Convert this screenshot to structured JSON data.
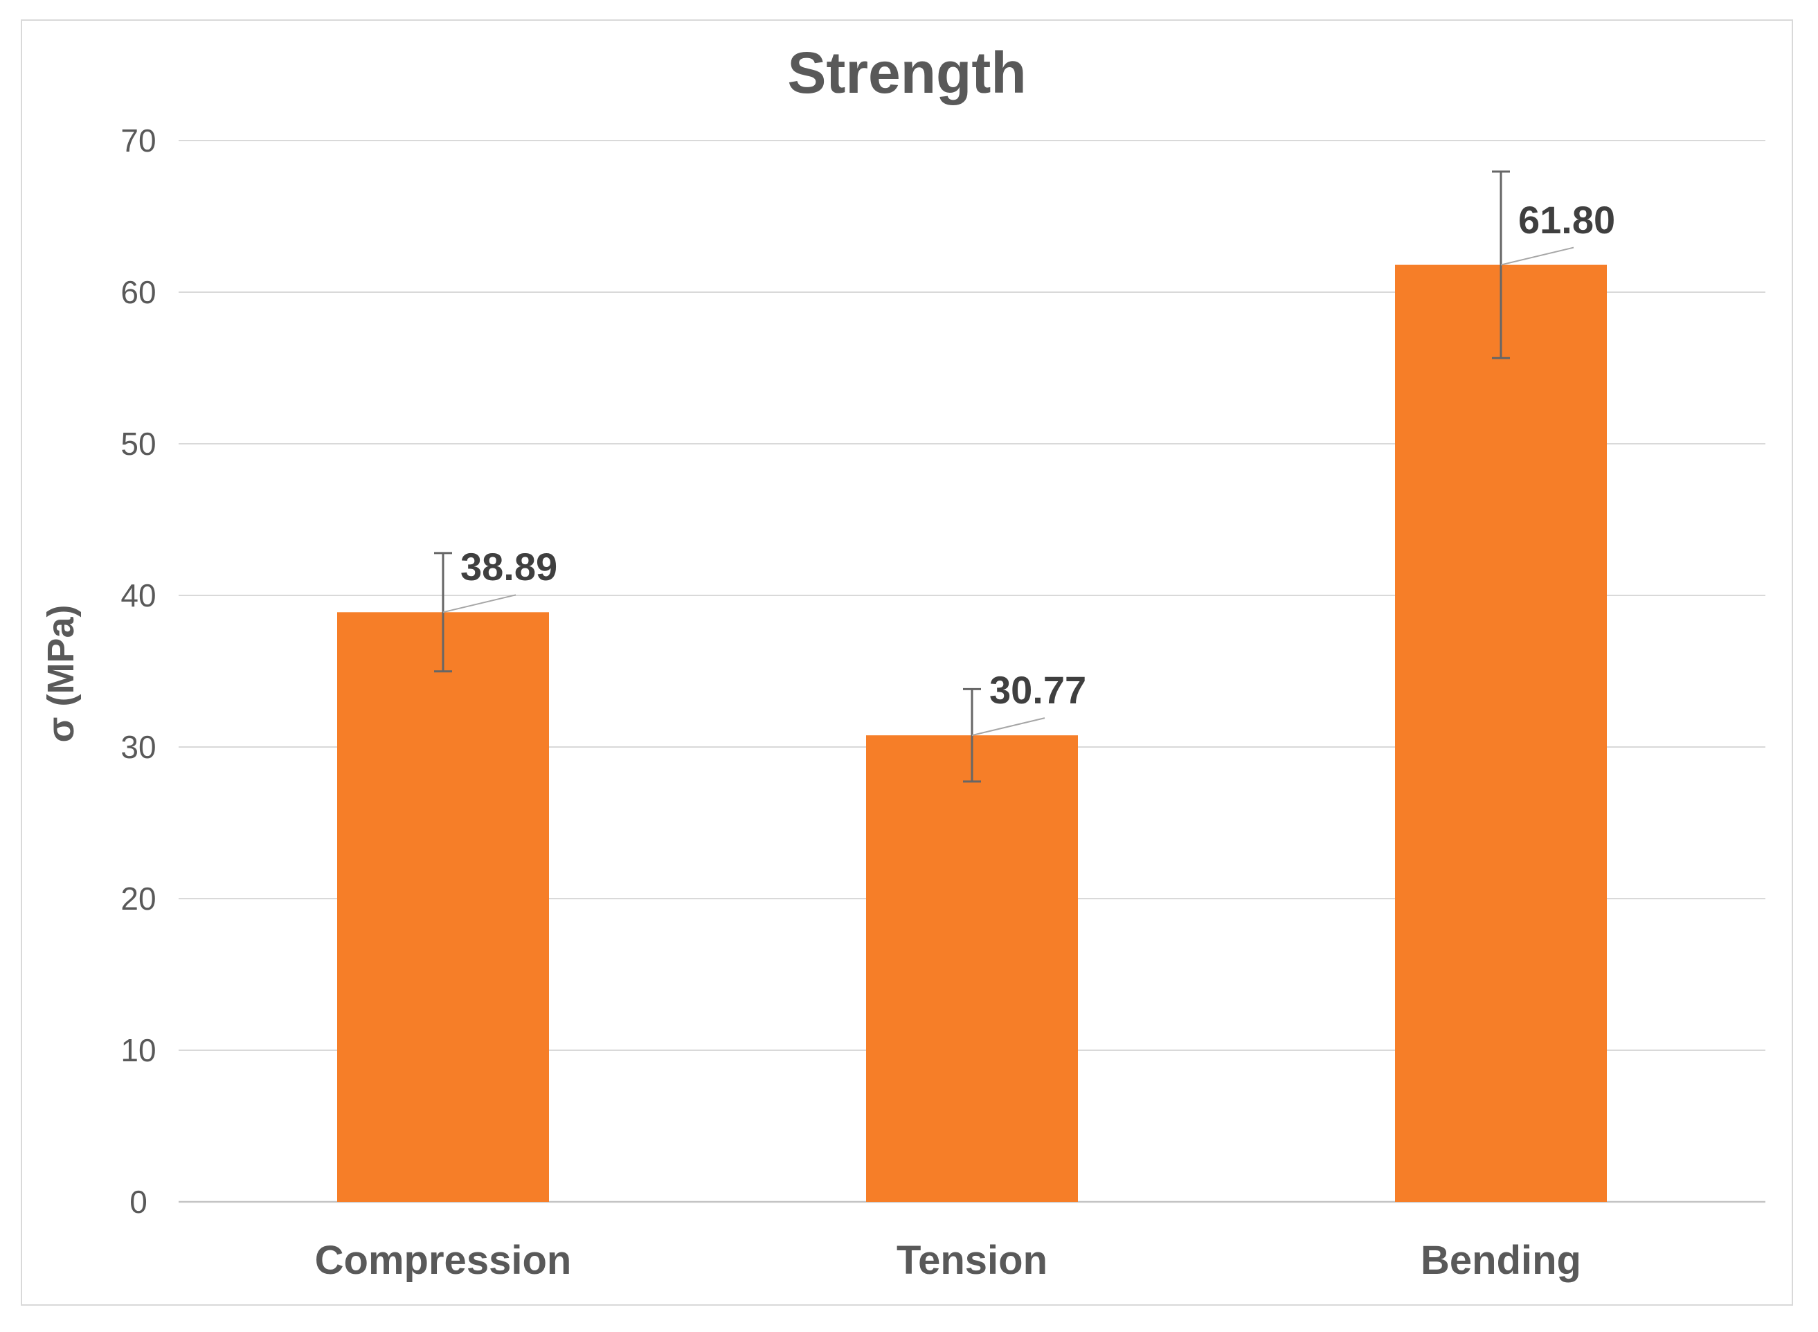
{
  "chart_data": {
    "type": "bar",
    "title": "Strength",
    "xlabel": "",
    "ylabel": "σ (MPa)",
    "categories": [
      "Compression",
      "Tension",
      "Bending"
    ],
    "values": [
      38.89,
      30.77,
      61.8
    ],
    "value_labels": [
      "38.89",
      "30.77",
      "61.80"
    ],
    "error_bars_plus_minus": [
      3.9,
      3.05,
      6.15
    ],
    "ylim": [
      0,
      70
    ],
    "yticks": [
      0,
      10,
      20,
      30,
      40,
      50,
      60,
      70
    ],
    "grid": true,
    "legend": "none",
    "data_label_style": "callout-with-leader-line",
    "colors": {
      "bar_fill": "#F67E28",
      "gridline": "#D9D9D9",
      "axis_line": "#C4C4C4",
      "chart_border": "#D9D9D9",
      "title_text": "#595959",
      "tick_text": "#595959",
      "category_text": "#595959",
      "data_label_text": "#3F3F3F",
      "error_bar": "#666666",
      "leader_line": "#A6A6A6",
      "background": "#FFFFFF"
    }
  }
}
